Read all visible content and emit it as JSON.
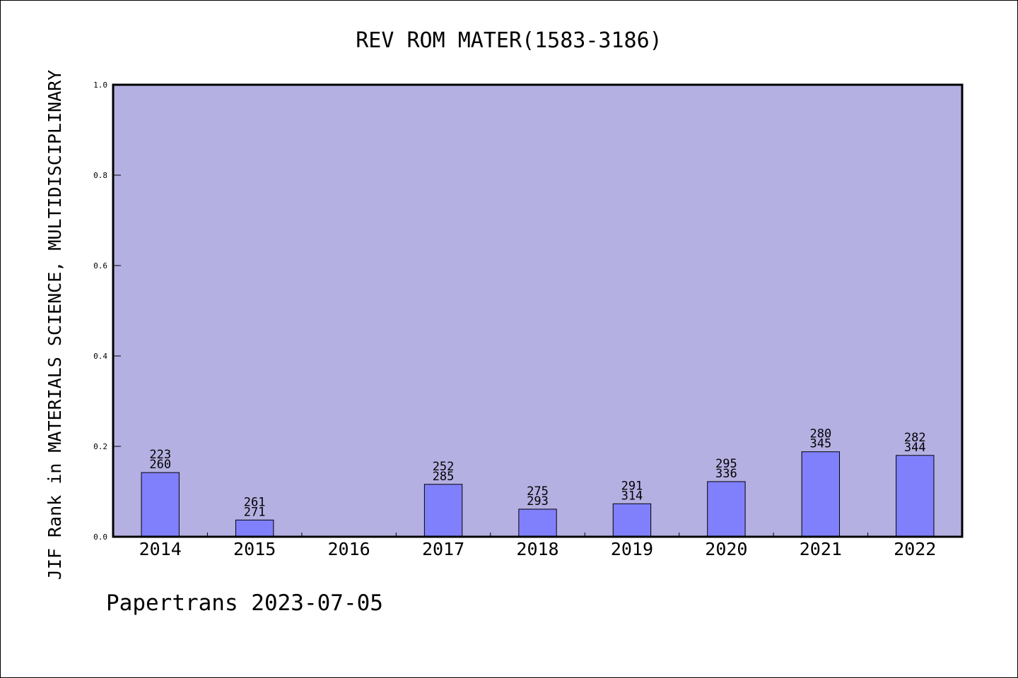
{
  "chart_data": {
    "type": "bar",
    "title": "REV ROM MATER(1583-3186)",
    "xlabel": "",
    "ylabel": "JIF Rank in MATERIALS SCIENCE, MULTIDISCIPLINARY",
    "ylim": [
      0,
      1.0
    ],
    "yticks": [
      "0.0",
      "0.2",
      "0.4",
      "0.6",
      "0.8",
      "1.0"
    ],
    "grid": false,
    "categories": [
      "2014",
      "2015",
      "2016",
      "2017",
      "2018",
      "2019",
      "2020",
      "2021",
      "2022"
    ],
    "values": [
      0.142,
      0.037,
      null,
      0.116,
      0.061,
      0.073,
      0.122,
      0.188,
      0.18
    ],
    "ranks": [
      "223",
      "261",
      "",
      "252",
      "275",
      "291",
      "295",
      "280",
      "282"
    ],
    "totals": [
      "260",
      "271",
      "",
      "285",
      "293",
      "314",
      "336",
      "345",
      "344"
    ],
    "colors": {
      "plot_bg": "#b5b0e2",
      "bar": "#8080fc",
      "bar_edge": "#000000"
    }
  },
  "footer": "Papertrans 2023-07-05"
}
